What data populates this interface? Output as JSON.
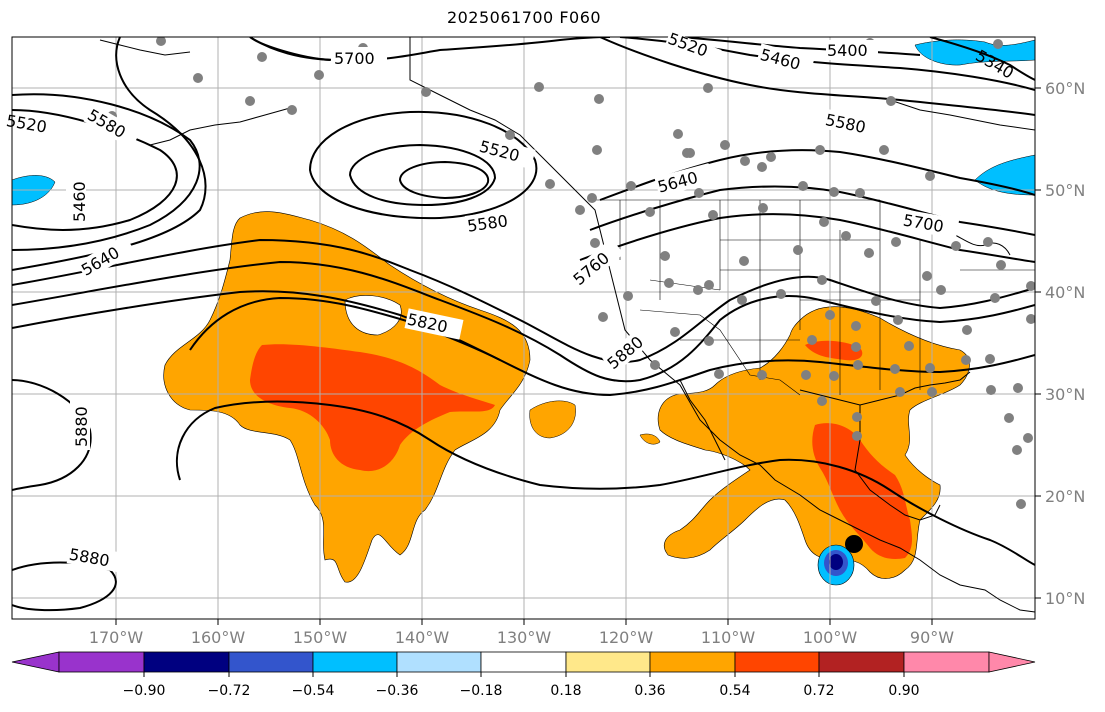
{
  "title": "2025061700 F060",
  "longitude_labels": [
    "170°W",
    "160°W",
    "150°W",
    "140°W",
    "130°W",
    "120°W",
    "110°W",
    "100°W",
    "90°W"
  ],
  "latitude_labels": [
    "60°N",
    "50°N",
    "40°N",
    "30°N",
    "20°N",
    "10°N"
  ],
  "contour_labels": [
    "5700",
    "5520",
    "5460",
    "5400",
    "5340",
    "5580",
    "5520",
    "5580",
    "5460",
    "5520",
    "5640",
    "5640",
    "5700",
    "5580",
    "5820",
    "5760",
    "5880",
    "5880",
    "5880"
  ],
  "colorbar": {
    "tick_labels": [
      "−0.90",
      "−0.72",
      "−0.54",
      "−0.36",
      "−0.18",
      "0.18",
      "0.36",
      "0.54",
      "0.72",
      "0.90"
    ],
    "colors": [
      "#9933cc",
      "#000080",
      "#3355cc",
      "#00bfff",
      "#b0e0ff",
      "#ffffff",
      "#ffe88a",
      "#ffa500",
      "#ff4500",
      "#b22222",
      "#ff88aa"
    ]
  },
  "colors": {
    "orange": "#ffa500",
    "red_orange": "#ff4500",
    "light_blue": "#00bfff",
    "station_dot": "#808080"
  }
}
